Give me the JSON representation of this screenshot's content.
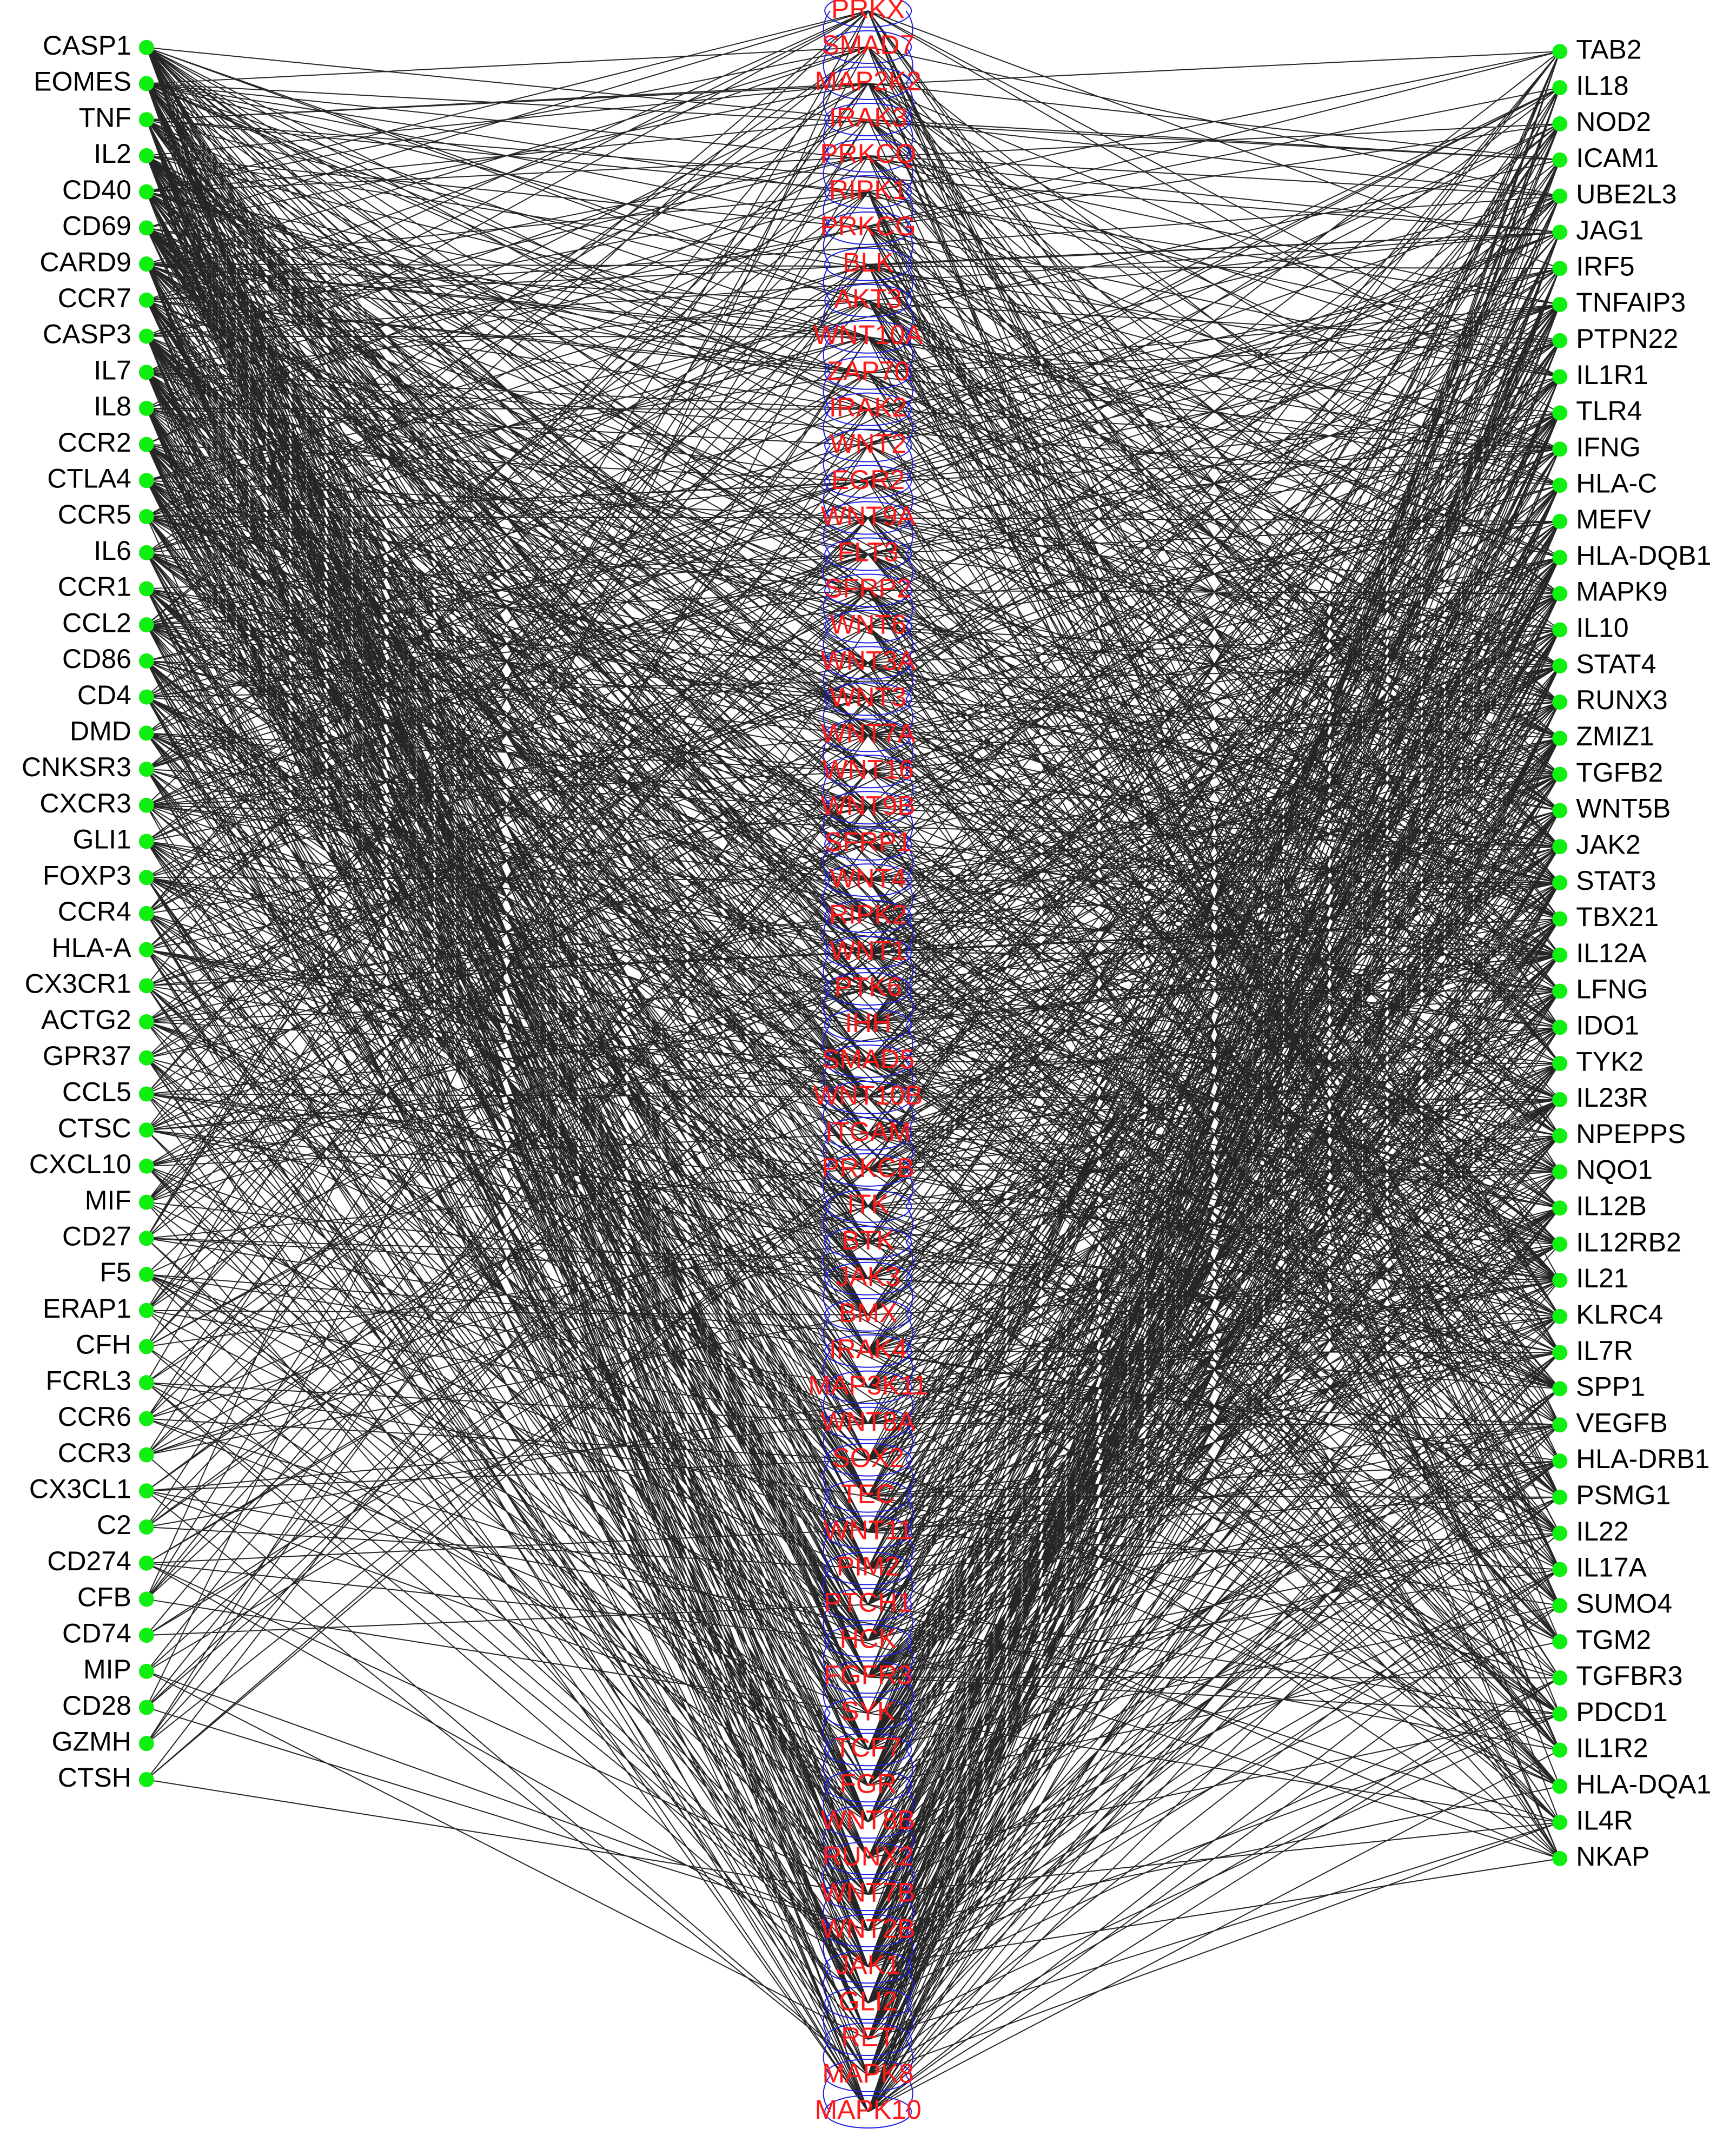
{
  "left_nodes": [
    "CASP1",
    "EOMES",
    "TNF",
    "IL2",
    "CD40",
    "CD69",
    "CARD9",
    "CCR7",
    "CASP3",
    "IL7",
    "IL8",
    "CCR2",
    "CTLA4",
    "CCR5",
    "IL6",
    "CCR1",
    "CCL2",
    "CD86",
    "CD4",
    "DMD",
    "CNKSR3",
    "CXCR3",
    "GLI1",
    "FOXP3",
    "CCR4",
    "HLA-A",
    "CX3CR1",
    "ACTG2",
    "GPR37",
    "CCL5",
    "CTSC",
    "CXCL10",
    "MIF",
    "CD27",
    "F5",
    "ERAP1",
    "CFH",
    "FCRL3",
    "CCR6",
    "CCR3",
    "CX3CL1",
    "C2",
    "CD274",
    "CFB",
    "CD74",
    "MIP",
    "CD28",
    "GZMH",
    "CTSH"
  ],
  "middle_nodes": [
    "PRKX",
    "SMAD7",
    "MAP2K2",
    "IRAK3",
    "PRKCQ",
    "RIPK1",
    "PRKCG",
    "BLK",
    "AKT3",
    "WNT10A",
    "ZAP70",
    "IRAK2",
    "WNT2",
    "EGR2",
    "WNT9A",
    "FLT3",
    "SFRP2",
    "WNT6",
    "WNT3A",
    "WNT3",
    "WNT7A",
    "WNT16",
    "WNT9B",
    "SFRP1",
    "WNT4",
    "RIPK2",
    "WNT1",
    "PTK6",
    "IHH",
    "SMAD5",
    "WNT10B",
    "ITGAM",
    "PRKCB",
    "ITK",
    "BTK",
    "JAK3",
    "BMX",
    "IRAK4",
    "MAP3K11",
    "WNT8A",
    "SOX2",
    "TEC",
    "WNT11",
    "PIM2",
    "PTCH1",
    "HCK",
    "FGFR3",
    "SYK",
    "TCF7",
    "FGR",
    "WNT8B",
    "RUNX2",
    "WNT7B",
    "WNT2B",
    "JAK1",
    "GLI2",
    "RET",
    "MAPK8",
    "MAPK10"
  ],
  "right_nodes": [
    "TAB2",
    "IL18",
    "NOD2",
    "ICAM1",
    "UBE2L3",
    "JAG1",
    "IRF5",
    "TNFAIP3",
    "PTPN22",
    "IL1R1",
    "TLR4",
    "IFNG",
    "HLA-C",
    "MEFV",
    "HLA-DQB1",
    "MAPK9",
    "IL10",
    "STAT4",
    "RUNX3",
    "ZMIZ1",
    "TGFB2",
    "WNT5B",
    "JAK2",
    "STAT3",
    "TBX21",
    "IL12A",
    "LFNG",
    "IDO1",
    "TYK2",
    "IL23R",
    "NPEPPS",
    "NQO1",
    "IL12B",
    "IL12RB2",
    "IL21",
    "KLRC4",
    "IL7R",
    "SPP1",
    "VEGFB",
    "HLA-DRB1",
    "PSMG1",
    "IL22",
    "IL17A",
    "SUMO4",
    "TGM2",
    "TGFBR3",
    "PDCD1",
    "IL1R2",
    "HLA-DQA1",
    "IL4R",
    "NKAP"
  ]
}
